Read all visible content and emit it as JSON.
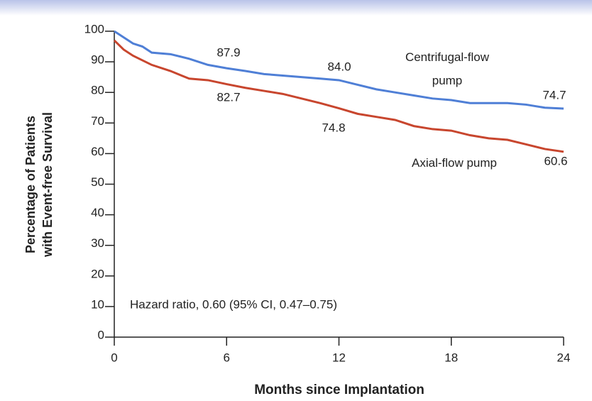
{
  "chart_data": {
    "type": "line",
    "x_label": "Months since Implantation",
    "y_label": [
      "Percentage of Patients",
      "with Event-free Survival"
    ],
    "xlim": [
      0,
      24
    ],
    "xticks": [
      0,
      6,
      12,
      18,
      24
    ],
    "ylim": [
      0,
      100
    ],
    "yticks": [
      0,
      10,
      20,
      30,
      40,
      50,
      60,
      70,
      80,
      90,
      100
    ],
    "x": [
      0,
      0.5,
      1,
      1.5,
      2,
      3,
      4,
      5,
      6,
      7,
      8,
      9,
      10,
      11,
      12,
      13,
      14,
      15,
      16,
      17,
      18,
      19,
      20,
      21,
      22,
      23,
      24
    ],
    "series": [
      {
        "name": "Centrifugal-flow pump",
        "color": "#4f7fd6",
        "values": [
          100,
          98,
          96,
          95,
          93,
          92.5,
          91,
          89,
          87.9,
          87,
          86,
          85.5,
          85,
          84.5,
          84.0,
          82.5,
          81,
          80,
          79,
          78,
          77.5,
          76.5,
          76.5,
          76.5,
          76,
          75,
          74.7
        ]
      },
      {
        "name": "Axial-flow pump",
        "color": "#c8462e",
        "values": [
          97,
          94,
          92,
          90.5,
          89,
          87,
          84.5,
          84,
          82.7,
          81.5,
          80.5,
          79.5,
          78,
          76.5,
          74.8,
          73,
          72,
          71,
          69,
          68,
          67.5,
          66,
          65,
          64.5,
          63,
          61.5,
          60.6
        ]
      }
    ],
    "annotations": [
      "87.9",
      "84.0",
      "74.7",
      "82.7",
      "74.8",
      "60.6",
      "Hazard ratio, 0.60 (95% CI, 0.47–0.75)"
    ]
  }
}
